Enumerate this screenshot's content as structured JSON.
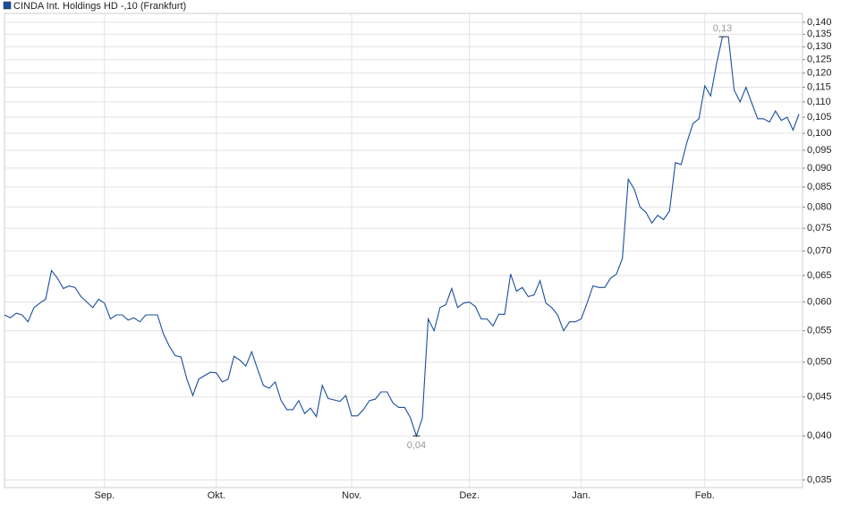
{
  "chart_data": {
    "type": "line",
    "series": [
      {
        "name": "CINDA Int. Holdings  HD -,10 (Frankfurt)",
        "color": "#1a4f9c",
        "values": [
          0.0577,
          0.0572,
          0.058,
          0.0577,
          0.0565,
          0.059,
          0.0598,
          0.0605,
          0.066,
          0.0645,
          0.0625,
          0.063,
          0.0627,
          0.061,
          0.06,
          0.059,
          0.0605,
          0.0598,
          0.057,
          0.0577,
          0.0577,
          0.0568,
          0.0572,
          0.0565,
          0.0577,
          0.0577,
          0.0577,
          0.0545,
          0.0525,
          0.051,
          0.0508,
          0.0475,
          0.0452,
          0.0475,
          0.048,
          0.0485,
          0.0484,
          0.0471,
          0.0475,
          0.0509,
          0.0503,
          0.0494,
          0.0516,
          0.049,
          0.0466,
          0.0462,
          0.0471,
          0.0445,
          0.0433,
          0.0433,
          0.0445,
          0.0428,
          0.0435,
          0.0424,
          0.0466,
          0.0448,
          0.0446,
          0.0444,
          0.0452,
          0.0425,
          0.0425,
          0.0433,
          0.0445,
          0.0447,
          0.0457,
          0.0457,
          0.0442,
          0.0436,
          0.0436,
          0.0422,
          0.04,
          0.0422,
          0.057,
          0.055,
          0.059,
          0.0595,
          0.0625,
          0.059,
          0.0598,
          0.06,
          0.0592,
          0.057,
          0.057,
          0.0558,
          0.0578,
          0.0578,
          0.0653,
          0.062,
          0.0627,
          0.061,
          0.0613,
          0.064,
          0.0598,
          0.059,
          0.0577,
          0.055,
          0.0565,
          0.0565,
          0.057,
          0.0598,
          0.063,
          0.0627,
          0.0627,
          0.0645,
          0.0653,
          0.0685,
          0.087,
          0.0845,
          0.08,
          0.0787,
          0.0762,
          0.078,
          0.077,
          0.079,
          0.0915,
          0.091,
          0.0975,
          0.103,
          0.1045,
          0.1155,
          0.112,
          0.1235,
          0.134,
          0.134,
          0.114,
          0.11,
          0.115,
          0.1095,
          0.1045,
          0.1045,
          0.1035,
          0.107,
          0.104,
          0.105,
          0.101,
          0.106
        ],
        "value_labels": [
          null,
          null,
          null,
          null,
          null,
          null,
          null,
          null,
          null,
          null,
          null,
          null,
          null,
          null,
          null,
          null,
          null,
          null,
          null,
          null,
          null,
          null,
          null,
          null,
          null,
          null,
          null,
          null,
          null,
          null,
          null,
          null,
          null,
          null,
          null,
          null,
          null,
          null,
          null,
          null,
          null,
          null,
          null,
          null,
          null,
          null,
          null,
          null,
          null,
          null,
          null,
          null,
          null,
          null,
          null,
          null,
          null,
          null,
          null,
          null,
          null,
          null,
          null,
          null,
          null,
          null,
          null,
          null,
          null,
          null,
          "0,04",
          null,
          null,
          null,
          null,
          null,
          null,
          null,
          null,
          null,
          null,
          null,
          null,
          null,
          null,
          null,
          null,
          null,
          null,
          null,
          null,
          null,
          null,
          null,
          null,
          null,
          null,
          null,
          null,
          null,
          null,
          null,
          null,
          null,
          null,
          null,
          null,
          null,
          null,
          null,
          null,
          null,
          null,
          null,
          null,
          null,
          null,
          null,
          null,
          null,
          null,
          null,
          "0,13",
          null,
          null,
          null,
          null,
          null,
          null,
          null,
          null,
          null,
          null,
          null,
          null,
          null
        ]
      }
    ],
    "categories": [
      null,
      null,
      null,
      null,
      null,
      null,
      null,
      null,
      null,
      null,
      null,
      null,
      null,
      null,
      null,
      null,
      null,
      "Sep.",
      null,
      null,
      null,
      null,
      null,
      null,
      null,
      null,
      null,
      null,
      null,
      null,
      null,
      null,
      null,
      null,
      null,
      null,
      "Okt.",
      null,
      null,
      null,
      null,
      null,
      null,
      null,
      null,
      null,
      null,
      null,
      null,
      null,
      null,
      null,
      null,
      null,
      null,
      null,
      null,
      null,
      null,
      "Nov.",
      null,
      null,
      null,
      null,
      null,
      null,
      null,
      null,
      null,
      null,
      null,
      null,
      null,
      null,
      null,
      null,
      null,
      null,
      null,
      "Dez.",
      null,
      null,
      null,
      null,
      null,
      null,
      null,
      null,
      null,
      null,
      null,
      null,
      null,
      null,
      null,
      null,
      null,
      null,
      "Jan.",
      null,
      null,
      null,
      null,
      null,
      null,
      null,
      null,
      null,
      null,
      null,
      null,
      null,
      null,
      null,
      null,
      null,
      null,
      null,
      null,
      "Feb.",
      null,
      null,
      null,
      null,
      null,
      null,
      null,
      null,
      null,
      null,
      null,
      null,
      null,
      null,
      null,
      null
    ],
    "log_scale": true,
    "grid": true,
    "ylim": [
      0.0342,
      0.1438
    ],
    "yticks": [
      {
        "value": 0.035,
        "label": "0,035"
      },
      {
        "value": 0.04,
        "label": "0,040"
      },
      {
        "value": 0.045,
        "label": "0,045"
      },
      {
        "value": 0.05,
        "label": "0,050"
      },
      {
        "value": 0.055,
        "label": "0,055"
      },
      {
        "value": 0.06,
        "label": "0,060"
      },
      {
        "value": 0.065,
        "label": "0,065"
      },
      {
        "value": 0.07,
        "label": "0,070"
      },
      {
        "value": 0.075,
        "label": "0,075"
      },
      {
        "value": 0.08,
        "label": "0,080"
      },
      {
        "value": 0.085,
        "label": "0,085"
      },
      {
        "value": 0.09,
        "label": "0,090"
      },
      {
        "value": 0.095,
        "label": "0,095"
      },
      {
        "value": 0.1,
        "label": "0,100"
      },
      {
        "value": 0.105,
        "label": "0,105"
      },
      {
        "value": 0.11,
        "label": "0,110"
      },
      {
        "value": 0.115,
        "label": "0,115"
      },
      {
        "value": 0.12,
        "label": "0,120"
      },
      {
        "value": 0.125,
        "label": "0,125"
      },
      {
        "value": 0.13,
        "label": "0,130"
      },
      {
        "value": 0.135,
        "label": "0,135"
      },
      {
        "value": 0.14,
        "label": "0,140"
      }
    ]
  }
}
